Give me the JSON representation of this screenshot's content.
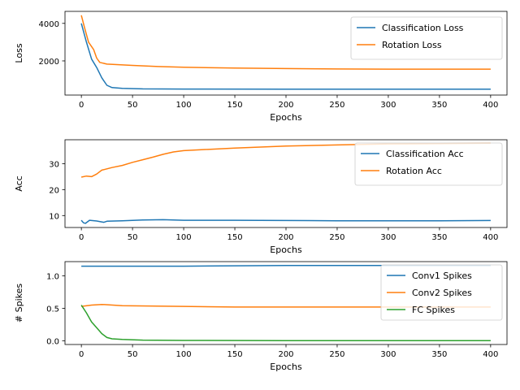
{
  "chart_data": [
    {
      "type": "line",
      "xlabel": "Epochs",
      "ylabel": "Loss",
      "xlim": [
        -16,
        416
      ],
      "ylim": [
        180,
        4640
      ],
      "xticks": [
        0,
        50,
        100,
        150,
        200,
        250,
        300,
        350,
        400
      ],
      "yticks": [
        2000,
        4000
      ],
      "grid": false,
      "legend": "top-right",
      "series": [
        {
          "name": "Classification Loss",
          "color": "#1f77b4",
          "points": [
            [
              0,
              4000
            ],
            [
              5,
              3000
            ],
            [
              10,
              2100
            ],
            [
              15,
              1650
            ],
            [
              20,
              1100
            ],
            [
              25,
              700
            ],
            [
              30,
              580
            ],
            [
              40,
              540
            ],
            [
              60,
              510
            ],
            [
              100,
              500
            ],
            [
              200,
              490
            ],
            [
              300,
              490
            ],
            [
              400,
              490
            ]
          ]
        },
        {
          "name": "Rotation Loss",
          "color": "#ff7f0e",
          "points": [
            [
              0,
              4430
            ],
            [
              3,
              3800
            ],
            [
              7,
              3000
            ],
            [
              12,
              2600
            ],
            [
              15,
              2150
            ],
            [
              18,
              1920
            ],
            [
              25,
              1830
            ],
            [
              50,
              1760
            ],
            [
              75,
              1700
            ],
            [
              100,
              1660
            ],
            [
              150,
              1620
            ],
            [
              200,
              1590
            ],
            [
              250,
              1570
            ],
            [
              300,
              1560
            ],
            [
              400,
              1560
            ]
          ]
        }
      ]
    },
    {
      "type": "line",
      "xlabel": "Epochs",
      "ylabel": "Acc",
      "xlim": [
        -16,
        416
      ],
      "ylim": [
        5.4,
        39.2
      ],
      "xticks": [
        0,
        50,
        100,
        150,
        200,
        250,
        300,
        350,
        400
      ],
      "yticks": [
        10,
        20,
        30
      ],
      "grid": false,
      "legend": "right",
      "series": [
        {
          "name": "Classification Acc",
          "color": "#1f77b4",
          "points": [
            [
              0,
              8.2
            ],
            [
              2,
              7.2
            ],
            [
              4,
              7.0
            ],
            [
              8,
              8.2
            ],
            [
              15,
              7.9
            ],
            [
              22,
              7.4
            ],
            [
              25,
              7.8
            ],
            [
              40,
              8.0
            ],
            [
              60,
              8.3
            ],
            [
              80,
              8.4
            ],
            [
              100,
              8.2
            ],
            [
              150,
              8.2
            ],
            [
              200,
              8.1
            ],
            [
              250,
              8.0
            ],
            [
              300,
              8.0
            ],
            [
              350,
              8.0
            ],
            [
              400,
              8.1
            ]
          ]
        },
        {
          "name": "Rotation Acc",
          "color": "#ff7f0e",
          "points": [
            [
              0,
              24.8
            ],
            [
              5,
              25.2
            ],
            [
              10,
              25.0
            ],
            [
              15,
              26.0
            ],
            [
              20,
              27.5
            ],
            [
              30,
              28.5
            ],
            [
              40,
              29.3
            ],
            [
              50,
              30.5
            ],
            [
              60,
              31.5
            ],
            [
              70,
              32.5
            ],
            [
              80,
              33.6
            ],
            [
              90,
              34.5
            ],
            [
              100,
              35.0
            ],
            [
              150,
              36.0
            ],
            [
              200,
              36.8
            ],
            [
              250,
              37.2
            ],
            [
              300,
              37.6
            ],
            [
              350,
              37.7
            ],
            [
              400,
              37.9
            ]
          ]
        }
      ]
    },
    {
      "type": "line",
      "xlabel": "Epochs",
      "ylabel": "# Spikes",
      "xlim": [
        -16,
        416
      ],
      "ylim": [
        -0.058,
        1.22
      ],
      "xticks": [
        0,
        50,
        100,
        150,
        200,
        250,
        300,
        350,
        400
      ],
      "yticks": [
        0.0,
        0.5,
        1.0
      ],
      "ytick_labels": [
        "0.0",
        "0.5",
        "1.0"
      ],
      "grid": false,
      "legend": "right",
      "series": [
        {
          "name": "Conv1 Spikes",
          "color": "#1f77b4",
          "points": [
            [
              0,
              1.15
            ],
            [
              100,
              1.15
            ],
            [
              200,
              1.16
            ],
            [
              300,
              1.16
            ],
            [
              400,
              1.16
            ]
          ]
        },
        {
          "name": "Conv2 Spikes",
          "color": "#ff7f0e",
          "points": [
            [
              0,
              0.53
            ],
            [
              10,
              0.55
            ],
            [
              20,
              0.56
            ],
            [
              40,
              0.54
            ],
            [
              100,
              0.53
            ],
            [
              150,
              0.52
            ],
            [
              200,
              0.52
            ],
            [
              300,
              0.52
            ],
            [
              400,
              0.52
            ]
          ]
        },
        {
          "name": "FC Spikes",
          "color": "#2ca02c",
          "points": [
            [
              0,
              0.55
            ],
            [
              5,
              0.43
            ],
            [
              10,
              0.29
            ],
            [
              15,
              0.2
            ],
            [
              20,
              0.11
            ],
            [
              25,
              0.05
            ],
            [
              30,
              0.03
            ],
            [
              40,
              0.02
            ],
            [
              60,
              0.01
            ],
            [
              100,
              0.005
            ],
            [
              200,
              0.002
            ],
            [
              400,
              0.001
            ]
          ]
        }
      ]
    }
  ]
}
